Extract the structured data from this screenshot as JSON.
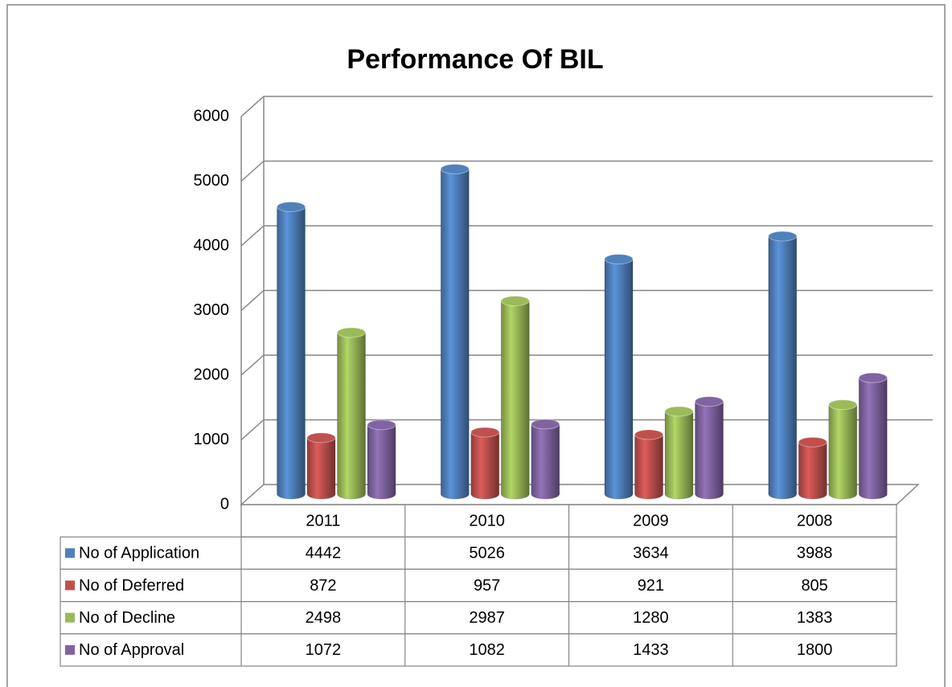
{
  "chart_data": {
    "type": "bar",
    "title": "Performance Of BIL",
    "categories": [
      "2011",
      "2010",
      "2009",
      "2008"
    ],
    "series": [
      {
        "name": "No of Application",
        "color": "#4f81bd",
        "values": [
          4442,
          5026,
          3634,
          3988
        ]
      },
      {
        "name": "No of Deferred",
        "color": "#c0504d",
        "values": [
          872,
          957,
          921,
          805
        ]
      },
      {
        "name": "No of Decline",
        "color": "#9bbb59",
        "values": [
          2498,
          2987,
          1280,
          1383
        ]
      },
      {
        "name": "No of Approval",
        "color": "#8064a2",
        "values": [
          1072,
          1082,
          1433,
          1800
        ]
      }
    ],
    "ylim": [
      0,
      6000
    ],
    "yticks": [
      0,
      1000,
      2000,
      3000,
      4000,
      5000,
      6000
    ],
    "grid": true,
    "data_table": true
  }
}
